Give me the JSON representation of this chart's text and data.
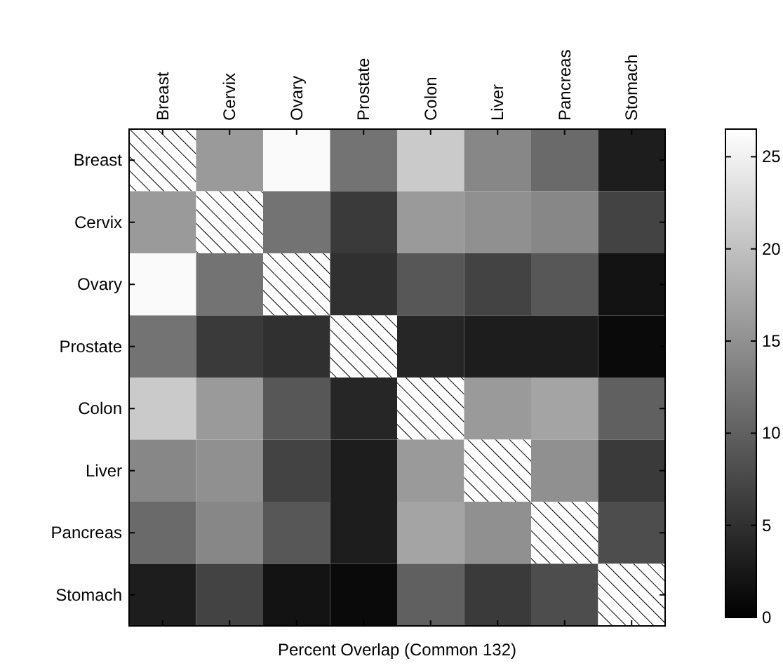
{
  "chart_data": {
    "type": "heatmap",
    "xlabel": "Percent Overlap (Common 132)",
    "categories": [
      "Breast",
      "Cervix",
      "Ovary",
      "Prostate",
      "Colon",
      "Liver",
      "Pancreas",
      "Stomach"
    ],
    "y_categories": [
      "Breast",
      "Cervix",
      "Ovary",
      "Prostate",
      "Colon",
      "Liver",
      "Pancreas",
      "Stomach"
    ],
    "cells": [
      [
        null,
        16,
        26,
        12,
        21,
        14,
        11,
        3
      ],
      [
        16,
        null,
        12,
        6,
        16,
        15,
        14,
        7
      ],
      [
        26,
        12,
        null,
        5,
        9,
        7,
        9,
        2
      ],
      [
        12,
        6,
        5,
        null,
        4,
        3,
        3,
        1
      ],
      [
        21,
        16,
        9,
        4,
        null,
        16,
        17,
        10
      ],
      [
        14,
        15,
        7,
        3,
        16,
        null,
        15,
        6
      ],
      [
        11,
        14,
        9,
        3,
        17,
        15,
        null,
        8
      ],
      [
        3,
        7,
        2,
        1,
        10,
        6,
        8,
        null
      ]
    ],
    "clim": [
      0,
      26.5
    ],
    "cticks": [
      0,
      5,
      10,
      15,
      20,
      25
    ]
  }
}
